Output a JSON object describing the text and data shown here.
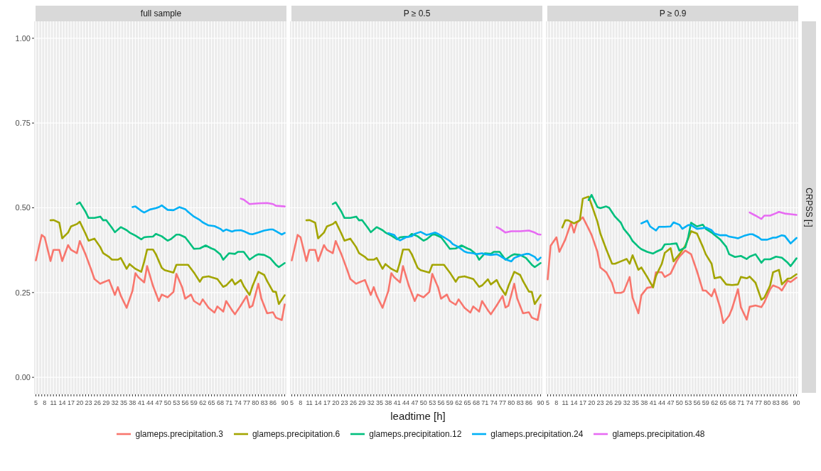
{
  "chart_data": [
    {
      "type": "line",
      "title": "full sample",
      "legend": "bottom",
      "grid": true,
      "marker": "none",
      "line_style": "solid",
      "xlim": [
        4.4,
        90.6
      ],
      "ylim": [
        -0.05,
        1.05
      ],
      "xticks": [
        5,
        {
          "value": 6,
          "label": null
        },
        {
          "value": 7,
          "label": null
        },
        8,
        {
          "value": 9,
          "label": null
        },
        {
          "value": 10,
          "label": null
        },
        11,
        {
          "value": 12,
          "label": null
        },
        {
          "value": 13,
          "label": null
        },
        14,
        {
          "value": 15,
          "label": null
        },
        {
          "value": 16,
          "label": null
        },
        17,
        {
          "value": 18,
          "label": null
        },
        {
          "value": 19,
          "label": null
        },
        20,
        {
          "value": 21,
          "label": null
        },
        {
          "value": 22,
          "label": null
        },
        23,
        {
          "value": 24,
          "label": null
        },
        {
          "value": 25,
          "label": null
        },
        26,
        {
          "value": 27,
          "label": null
        },
        {
          "value": 28,
          "label": null
        },
        29,
        {
          "value": 30,
          "label": null
        },
        {
          "value": 31,
          "label": null
        },
        32,
        {
          "value": 33,
          "label": null
        },
        {
          "value": 34,
          "label": null
        },
        35,
        {
          "value": 36,
          "label": null
        },
        {
          "value": 37,
          "label": null
        },
        38,
        {
          "value": 39,
          "label": null
        },
        {
          "value": 40,
          "label": null
        },
        41,
        {
          "value": 42,
          "label": null
        },
        {
          "value": 43,
          "label": null
        },
        44,
        {
          "value": 45,
          "label": null
        },
        {
          "value": 46,
          "label": null
        },
        47,
        {
          "value": 48,
          "label": null
        },
        {
          "value": 49,
          "label": null
        },
        50,
        {
          "value": 51,
          "label": null
        },
        {
          "value": 52,
          "label": null
        },
        53,
        {
          "value": 54,
          "label": null
        },
        {
          "value": 55,
          "label": null
        },
        56,
        {
          "value": 57,
          "label": null
        },
        {
          "value": 58,
          "label": null
        },
        59,
        {
          "value": 60,
          "label": null
        },
        {
          "value": 61,
          "label": null
        },
        62,
        {
          "value": 63,
          "label": null
        },
        {
          "value": 64,
          "label": null
        },
        65,
        {
          "value": 66,
          "label": null
        },
        {
          "value": 67,
          "label": null
        },
        68,
        {
          "value": 69,
          "label": null
        },
        {
          "value": 70,
          "label": null
        },
        71,
        {
          "value": 72,
          "label": null
        },
        {
          "value": 73,
          "label": null
        },
        74,
        {
          "value": 75,
          "label": null
        },
        {
          "value": 76,
          "label": null
        },
        77,
        {
          "value": 78,
          "label": null
        },
        {
          "value": 79,
          "label": null
        },
        80,
        {
          "value": 81,
          "label": null
        },
        {
          "value": 82,
          "label": null
        },
        83,
        {
          "value": 84,
          "label": null
        },
        {
          "value": 85,
          "label": null
        },
        86,
        {
          "value": 87,
          "label": null
        },
        {
          "value": 88,
          "label": null
        },
        {
          "value": 89,
          "label": null
        },
        90
      ],
      "yticks": [
        {
          "value": 0,
          "label": "0.00"
        },
        {
          "value": 0.25,
          "label": "0.25"
        },
        {
          "value": 0.5,
          "label": "0.50"
        },
        {
          "value": 0.75,
          "label": "0.75"
        },
        {
          "value": 1,
          "label": "1.00"
        }
      ],
      "series": [
        {
          "name": "glameps.precipitation.3",
          "color": "#f8766d",
          "x": [
            5,
            7,
            8,
            10,
            11,
            13,
            14,
            16,
            17,
            19,
            20,
            22,
            24,
            25,
            27,
            28,
            30,
            32,
            33,
            34,
            36,
            38,
            39,
            40,
            42,
            43,
            45,
            47,
            48,
            50,
            52,
            53,
            55,
            56,
            58,
            59,
            61,
            62,
            64,
            66,
            67,
            69,
            70,
            72,
            73,
            75,
            77,
            78,
            79,
            81,
            82,
            84,
            86,
            87,
            89,
            90
          ],
          "values": [
            0.345,
            0.42,
            0.413,
            0.343,
            0.376,
            0.376,
            0.343,
            0.39,
            0.376,
            0.366,
            0.402,
            0.362,
            0.315,
            0.29,
            0.276,
            0.28,
            0.287,
            0.243,
            0.266,
            0.241,
            0.205,
            0.255,
            0.307,
            0.295,
            0.28,
            0.328,
            0.27,
            0.225,
            0.244,
            0.236,
            0.252,
            0.305,
            0.265,
            0.232,
            0.244,
            0.225,
            0.214,
            0.23,
            0.205,
            0.191,
            0.209,
            0.194,
            0.225,
            0.198,
            0.186,
            0.212,
            0.24,
            0.206,
            0.211,
            0.276,
            0.233,
            0.189,
            0.192,
            0.176,
            0.169,
            0.215
          ]
        },
        {
          "name": "glameps.precipitation.6",
          "color": "#a3a500",
          "x": [
            10,
            11,
            13,
            14,
            16,
            17,
            19,
            20,
            22,
            23,
            25,
            27,
            28,
            30,
            31,
            33,
            34,
            36,
            37,
            39,
            41,
            42,
            43,
            45,
            46,
            48,
            49,
            52,
            53,
            55,
            57,
            59,
            61,
            62,
            64,
            65,
            67,
            69,
            70,
            72,
            73,
            75,
            76,
            78,
            79,
            81,
            83,
            84,
            86,
            87,
            88,
            90
          ],
          "values": [
            0.463,
            0.464,
            0.456,
            0.41,
            0.427,
            0.445,
            0.452,
            0.459,
            0.423,
            0.403,
            0.409,
            0.384,
            0.366,
            0.355,
            0.347,
            0.347,
            0.352,
            0.32,
            0.334,
            0.32,
            0.311,
            0.341,
            0.377,
            0.377,
            0.363,
            0.323,
            0.316,
            0.309,
            0.332,
            0.332,
            0.332,
            0.309,
            0.282,
            0.295,
            0.298,
            0.295,
            0.29,
            0.267,
            0.271,
            0.289,
            0.274,
            0.287,
            0.269,
            0.243,
            0.269,
            0.311,
            0.302,
            0.284,
            0.253,
            0.252,
            0.216,
            0.242
          ]
        },
        {
          "name": "glameps.precipitation.12",
          "color": "#00bf7d",
          "x": [
            19,
            20,
            22,
            23,
            25,
            27,
            28,
            29,
            31,
            32,
            34,
            36,
            37,
            39,
            41,
            42,
            43,
            45,
            46,
            48,
            50,
            51,
            53,
            54,
            56,
            57,
            59,
            61,
            63,
            65,
            66,
            68,
            69,
            71,
            73,
            74,
            76,
            78,
            80,
            81,
            83,
            85,
            87,
            88,
            90
          ],
          "values": [
            0.511,
            0.516,
            0.488,
            0.47,
            0.47,
            0.474,
            0.463,
            0.464,
            0.441,
            0.428,
            0.443,
            0.434,
            0.427,
            0.418,
            0.407,
            0.413,
            0.414,
            0.415,
            0.423,
            0.416,
            0.403,
            0.407,
            0.421,
            0.421,
            0.413,
            0.402,
            0.379,
            0.38,
            0.389,
            0.38,
            0.377,
            0.363,
            0.347,
            0.366,
            0.364,
            0.37,
            0.37,
            0.347,
            0.359,
            0.363,
            0.361,
            0.352,
            0.332,
            0.325,
            0.337
          ]
        },
        {
          "name": "glameps.precipitation.24",
          "color": "#00b0f6",
          "x": [
            38,
            39,
            41,
            42,
            44,
            46,
            47,
            48,
            50,
            52,
            54,
            56,
            57,
            59,
            61,
            62,
            64,
            66,
            68,
            69,
            70,
            72,
            73,
            75,
            76,
            78,
            79,
            81,
            83,
            85,
            86,
            87,
            89,
            90
          ],
          "values": [
            0.502,
            0.504,
            0.491,
            0.486,
            0.495,
            0.499,
            0.502,
            0.507,
            0.494,
            0.493,
            0.502,
            0.496,
            0.488,
            0.474,
            0.464,
            0.457,
            0.448,
            0.446,
            0.438,
            0.431,
            0.436,
            0.43,
            0.433,
            0.434,
            0.431,
            0.423,
            0.422,
            0.427,
            0.433,
            0.436,
            0.436,
            0.431,
            0.421,
            0.426
          ]
        },
        {
          "name": "glameps.precipitation.48",
          "color": "#e76bf3",
          "x": [
            75,
            76,
            78,
            81,
            84,
            86,
            87,
            90
          ],
          "values": [
            0.527,
            0.524,
            0.511,
            0.513,
            0.514,
            0.511,
            0.506,
            0.504
          ]
        }
      ]
    },
    {
      "type": "line",
      "title": "P ≥ 0.5",
      "xlabel": "leadtime [h]",
      "grid": true,
      "marker": "none",
      "line_style": "solid",
      "tick_labels": "x",
      "xlim": [
        4.4,
        90.6
      ],
      "ylim": [
        -0.05,
        1.05
      ],
      "xticks": [
        5,
        {
          "value": 6,
          "label": null
        },
        {
          "value": 7,
          "label": null
        },
        8,
        {
          "value": 9,
          "label": null
        },
        {
          "value": 10,
          "label": null
        },
        11,
        {
          "value": 12,
          "label": null
        },
        {
          "value": 13,
          "label": null
        },
        14,
        {
          "value": 15,
          "label": null
        },
        {
          "value": 16,
          "label": null
        },
        17,
        {
          "value": 18,
          "label": null
        },
        {
          "value": 19,
          "label": null
        },
        20,
        {
          "value": 21,
          "label": null
        },
        {
          "value": 22,
          "label": null
        },
        23,
        {
          "value": 24,
          "label": null
        },
        {
          "value": 25,
          "label": null
        },
        26,
        {
          "value": 27,
          "label": null
        },
        {
          "value": 28,
          "label": null
        },
        29,
        {
          "value": 30,
          "label": null
        },
        {
          "value": 31,
          "label": null
        },
        32,
        {
          "value": 33,
          "label": null
        },
        {
          "value": 34,
          "label": null
        },
        35,
        {
          "value": 36,
          "label": null
        },
        {
          "value": 37,
          "label": null
        },
        38,
        {
          "value": 39,
          "label": null
        },
        {
          "value": 40,
          "label": null
        },
        41,
        {
          "value": 42,
          "label": null
        },
        {
          "value": 43,
          "label": null
        },
        44,
        {
          "value": 45,
          "label": null
        },
        {
          "value": 46,
          "label": null
        },
        47,
        {
          "value": 48,
          "label": null
        },
        {
          "value": 49,
          "label": null
        },
        50,
        {
          "value": 51,
          "label": null
        },
        {
          "value": 52,
          "label": null
        },
        53,
        {
          "value": 54,
          "label": null
        },
        {
          "value": 55,
          "label": null
        },
        56,
        {
          "value": 57,
          "label": null
        },
        {
          "value": 58,
          "label": null
        },
        59,
        {
          "value": 60,
          "label": null
        },
        {
          "value": 61,
          "label": null
        },
        62,
        {
          "value": 63,
          "label": null
        },
        {
          "value": 64,
          "label": null
        },
        65,
        {
          "value": 66,
          "label": null
        },
        {
          "value": 67,
          "label": null
        },
        68,
        {
          "value": 69,
          "label": null
        },
        {
          "value": 70,
          "label": null
        },
        71,
        {
          "value": 72,
          "label": null
        },
        {
          "value": 73,
          "label": null
        },
        74,
        {
          "value": 75,
          "label": null
        },
        {
          "value": 76,
          "label": null
        },
        77,
        {
          "value": 78,
          "label": null
        },
        {
          "value": 79,
          "label": null
        },
        80,
        {
          "value": 81,
          "label": null
        },
        {
          "value": 82,
          "label": null
        },
        83,
        {
          "value": 84,
          "label": null
        },
        {
          "value": 85,
          "label": null
        },
        86,
        {
          "value": 87,
          "label": null
        },
        {
          "value": 88,
          "label": null
        },
        {
          "value": 89,
          "label": null
        },
        90
      ],
      "yticks": [
        0,
        0.25,
        0.5,
        0.75,
        1
      ],
      "series": [
        {
          "name": "glameps.precipitation.3",
          "color": "#f8766d",
          "x": [
            5,
            7,
            8,
            10,
            11,
            13,
            14,
            16,
            17,
            19,
            20,
            22,
            24,
            25,
            27,
            28,
            30,
            32,
            33,
            34,
            36,
            38,
            39,
            40,
            42,
            43,
            45,
            47,
            48,
            50,
            52,
            53,
            55,
            56,
            58,
            59,
            61,
            62,
            64,
            66,
            67,
            69,
            70,
            72,
            73,
            75,
            77,
            78,
            79,
            81,
            82,
            84,
            86,
            87,
            89,
            90
          ],
          "values": [
            0.345,
            0.42,
            0.413,
            0.343,
            0.376,
            0.376,
            0.343,
            0.39,
            0.376,
            0.366,
            0.402,
            0.362,
            0.315,
            0.29,
            0.276,
            0.28,
            0.287,
            0.243,
            0.266,
            0.241,
            0.205,
            0.255,
            0.307,
            0.295,
            0.28,
            0.328,
            0.27,
            0.225,
            0.244,
            0.236,
            0.252,
            0.305,
            0.265,
            0.232,
            0.244,
            0.225,
            0.214,
            0.23,
            0.205,
            0.191,
            0.209,
            0.194,
            0.225,
            0.198,
            0.186,
            0.212,
            0.24,
            0.206,
            0.211,
            0.276,
            0.233,
            0.189,
            0.192,
            0.176,
            0.169,
            0.215
          ]
        },
        {
          "name": "glameps.precipitation.6",
          "color": "#a3a500",
          "x": [
            10,
            11,
            13,
            14,
            16,
            17,
            19,
            20,
            22,
            23,
            25,
            27,
            28,
            30,
            31,
            33,
            34,
            36,
            37,
            39,
            41,
            42,
            43,
            45,
            46,
            48,
            49,
            52,
            53,
            55,
            57,
            59,
            61,
            62,
            64,
            65,
            67,
            69,
            70,
            72,
            73,
            75,
            76,
            78,
            79,
            81,
            83,
            84,
            86,
            87,
            88,
            90
          ],
          "values": [
            0.463,
            0.464,
            0.456,
            0.41,
            0.427,
            0.445,
            0.452,
            0.459,
            0.423,
            0.403,
            0.409,
            0.384,
            0.366,
            0.355,
            0.347,
            0.347,
            0.352,
            0.32,
            0.334,
            0.32,
            0.311,
            0.341,
            0.377,
            0.377,
            0.363,
            0.323,
            0.316,
            0.309,
            0.332,
            0.332,
            0.332,
            0.309,
            0.282,
            0.295,
            0.298,
            0.295,
            0.29,
            0.267,
            0.271,
            0.289,
            0.274,
            0.287,
            0.269,
            0.243,
            0.269,
            0.311,
            0.302,
            0.284,
            0.253,
            0.252,
            0.216,
            0.242
          ]
        },
        {
          "name": "glameps.precipitation.12",
          "color": "#00bf7d",
          "x": [
            19,
            20,
            22,
            23,
            25,
            27,
            28,
            29,
            31,
            32,
            34,
            36,
            37,
            39,
            41,
            42,
            43,
            45,
            46,
            48,
            50,
            51,
            53,
            54,
            56,
            57,
            59,
            61,
            63,
            65,
            66,
            68,
            69,
            71,
            73,
            74,
            76,
            78,
            80,
            81,
            83,
            85,
            87,
            88,
            90
          ],
          "values": [
            0.511,
            0.516,
            0.488,
            0.47,
            0.47,
            0.474,
            0.463,
            0.464,
            0.441,
            0.428,
            0.443,
            0.434,
            0.427,
            0.418,
            0.407,
            0.413,
            0.414,
            0.415,
            0.423,
            0.416,
            0.403,
            0.407,
            0.421,
            0.421,
            0.413,
            0.402,
            0.379,
            0.38,
            0.389,
            0.38,
            0.377,
            0.363,
            0.347,
            0.366,
            0.364,
            0.37,
            0.37,
            0.347,
            0.359,
            0.363,
            0.361,
            0.352,
            0.332,
            0.325,
            0.337
          ]
        },
        {
          "name": "glameps.precipitation.24",
          "color": "#00b0f6",
          "x": [
            38,
            40,
            41,
            42,
            44,
            46,
            47,
            49,
            51,
            52,
            54,
            55,
            57,
            59,
            60,
            62,
            64,
            65,
            67,
            68,
            70,
            71,
            73,
            75,
            76,
            78,
            80,
            81,
            83,
            85,
            86,
            88,
            89,
            90
          ],
          "values": [
            0.425,
            0.42,
            0.409,
            0.404,
            0.413,
            0.416,
            0.423,
            0.429,
            0.42,
            0.422,
            0.427,
            0.423,
            0.413,
            0.402,
            0.393,
            0.384,
            0.371,
            0.368,
            0.366,
            0.363,
            0.366,
            0.363,
            0.361,
            0.363,
            0.359,
            0.348,
            0.342,
            0.352,
            0.359,
            0.364,
            0.364,
            0.355,
            0.345,
            0.353
          ]
        },
        {
          "name": "glameps.precipitation.48",
          "color": "#e76bf3",
          "x": [
            75,
            76,
            78,
            80,
            83,
            86,
            88,
            89,
            90
          ],
          "values": [
            0.443,
            0.439,
            0.427,
            0.431,
            0.431,
            0.433,
            0.427,
            0.422,
            0.421
          ]
        }
      ]
    },
    {
      "type": "line",
      "title": "P ≥ 0.9",
      "ylabel": "CRPSS [-]",
      "grid": true,
      "marker": "none",
      "line_style": "solid",
      "tick_labels": "x",
      "xlim": [
        4.4,
        90.6
      ],
      "ylim": [
        -0.05,
        1.05
      ],
      "xticks": [
        5,
        {
          "value": 6,
          "label": null
        },
        {
          "value": 7,
          "label": null
        },
        8,
        {
          "value": 9,
          "label": null
        },
        {
          "value": 10,
          "label": null
        },
        11,
        {
          "value": 12,
          "label": null
        },
        {
          "value": 13,
          "label": null
        },
        14,
        {
          "value": 15,
          "label": null
        },
        {
          "value": 16,
          "label": null
        },
        17,
        {
          "value": 18,
          "label": null
        },
        {
          "value": 19,
          "label": null
        },
        20,
        {
          "value": 21,
          "label": null
        },
        {
          "value": 22,
          "label": null
        },
        23,
        {
          "value": 24,
          "label": null
        },
        {
          "value": 25,
          "label": null
        },
        26,
        {
          "value": 27,
          "label": null
        },
        {
          "value": 28,
          "label": null
        },
        29,
        {
          "value": 30,
          "label": null
        },
        {
          "value": 31,
          "label": null
        },
        32,
        {
          "value": 33,
          "label": null
        },
        {
          "value": 34,
          "label": null
        },
        35,
        {
          "value": 36,
          "label": null
        },
        {
          "value": 37,
          "label": null
        },
        38,
        {
          "value": 39,
          "label": null
        },
        {
          "value": 40,
          "label": null
        },
        41,
        {
          "value": 42,
          "label": null
        },
        {
          "value": 43,
          "label": null
        },
        44,
        {
          "value": 45,
          "label": null
        },
        {
          "value": 46,
          "label": null
        },
        47,
        {
          "value": 48,
          "label": null
        },
        {
          "value": 49,
          "label": null
        },
        50,
        {
          "value": 51,
          "label": null
        },
        {
          "value": 52,
          "label": null
        },
        53,
        {
          "value": 54,
          "label": null
        },
        {
          "value": 55,
          "label": null
        },
        56,
        {
          "value": 57,
          "label": null
        },
        {
          "value": 58,
          "label": null
        },
        59,
        {
          "value": 60,
          "label": null
        },
        {
          "value": 61,
          "label": null
        },
        62,
        {
          "value": 63,
          "label": null
        },
        {
          "value": 64,
          "label": null
        },
        65,
        {
          "value": 66,
          "label": null
        },
        {
          "value": 67,
          "label": null
        },
        68,
        {
          "value": 69,
          "label": null
        },
        {
          "value": 70,
          "label": null
        },
        71,
        {
          "value": 72,
          "label": null
        },
        {
          "value": 73,
          "label": null
        },
        74,
        {
          "value": 75,
          "label": null
        },
        {
          "value": 76,
          "label": null
        },
        77,
        {
          "value": 78,
          "label": null
        },
        {
          "value": 79,
          "label": null
        },
        80,
        {
          "value": 81,
          "label": null
        },
        {
          "value": 82,
          "label": null
        },
        83,
        {
          "value": 84,
          "label": null
        },
        {
          "value": 85,
          "label": null
        },
        86,
        {
          "value": 87,
          "label": null
        },
        {
          "value": 88,
          "label": null
        },
        {
          "value": 89,
          "label": null
        },
        90
      ],
      "yticks": [
        0,
        0.25,
        0.5,
        0.75,
        1
      ],
      "series": [
        {
          "name": "glameps.precipitation.3",
          "color": "#f8766d",
          "x": [
            5,
            6,
            8,
            9,
            11,
            13,
            14,
            15,
            17,
            19,
            20,
            22,
            23,
            25,
            27,
            28,
            30,
            31,
            33,
            34,
            36,
            37,
            39,
            41,
            42,
            44,
            45,
            47,
            49,
            50,
            52,
            54,
            56,
            58,
            59,
            61,
            62,
            64,
            65,
            67,
            68,
            70,
            71,
            73,
            74,
            76,
            78,
            79,
            81,
            82,
            84,
            85,
            87,
            88,
            90
          ],
          "values": [
            0.289,
            0.388,
            0.413,
            0.37,
            0.406,
            0.456,
            0.427,
            0.456,
            0.472,
            0.438,
            0.42,
            0.37,
            0.324,
            0.31,
            0.278,
            0.249,
            0.249,
            0.253,
            0.296,
            0.235,
            0.189,
            0.242,
            0.264,
            0.267,
            0.31,
            0.31,
            0.296,
            0.306,
            0.342,
            0.356,
            0.374,
            0.363,
            0.313,
            0.256,
            0.256,
            0.239,
            0.26,
            0.203,
            0.16,
            0.182,
            0.203,
            0.26,
            0.207,
            0.17,
            0.208,
            0.212,
            0.207,
            0.221,
            0.26,
            0.271,
            0.264,
            0.256,
            0.285,
            0.281,
            0.294
          ]
        },
        {
          "name": "glameps.precipitation.6",
          "color": "#a3a500",
          "x": [
            10,
            11,
            12,
            14,
            16,
            17,
            19,
            20,
            22,
            23,
            25,
            27,
            28,
            30,
            32,
            33,
            34,
            36,
            37,
            39,
            41,
            42,
            44,
            45,
            47,
            48,
            50,
            52,
            54,
            56,
            58,
            59,
            61,
            62,
            64,
            66,
            68,
            70,
            71,
            73,
            74,
            76,
            78,
            79,
            81,
            82,
            84,
            85,
            87,
            88,
            90
          ],
          "values": [
            0.442,
            0.463,
            0.463,
            0.454,
            0.463,
            0.527,
            0.533,
            0.509,
            0.459,
            0.424,
            0.378,
            0.335,
            0.335,
            0.342,
            0.349,
            0.335,
            0.36,
            0.317,
            0.324,
            0.296,
            0.265,
            0.299,
            0.335,
            0.367,
            0.381,
            0.342,
            0.363,
            0.388,
            0.431,
            0.424,
            0.385,
            0.363,
            0.335,
            0.292,
            0.296,
            0.274,
            0.272,
            0.274,
            0.296,
            0.292,
            0.297,
            0.279,
            0.229,
            0.235,
            0.271,
            0.31,
            0.317,
            0.274,
            0.291,
            0.292,
            0.304
          ]
        },
        {
          "name": "glameps.precipitation.12",
          "color": "#00bf7d",
          "x": [
            19,
            20,
            22,
            23,
            25,
            26,
            28,
            30,
            31,
            33,
            34,
            36,
            37,
            39,
            41,
            42,
            44,
            45,
            47,
            49,
            50,
            52,
            53,
            54,
            56,
            58,
            59,
            61,
            62,
            64,
            66,
            67,
            69,
            71,
            73,
            74,
            76,
            78,
            79,
            81,
            83,
            85,
            87,
            88,
            90
          ],
          "values": [
            0.523,
            0.538,
            0.502,
            0.499,
            0.504,
            0.5,
            0.474,
            0.456,
            0.438,
            0.417,
            0.402,
            0.385,
            0.378,
            0.37,
            0.365,
            0.37,
            0.378,
            0.392,
            0.393,
            0.395,
            0.374,
            0.383,
            0.413,
            0.456,
            0.445,
            0.45,
            0.438,
            0.427,
            0.42,
            0.406,
            0.385,
            0.363,
            0.355,
            0.358,
            0.349,
            0.356,
            0.363,
            0.338,
            0.348,
            0.348,
            0.356,
            0.353,
            0.338,
            0.328,
            0.351
          ]
        },
        {
          "name": "glameps.precipitation.24",
          "color": "#00b0f6",
          "x": [
            37,
            39,
            40,
            42,
            43,
            45,
            47,
            48,
            50,
            51,
            53,
            54,
            56,
            58,
            59,
            61,
            62,
            64,
            66,
            67,
            69,
            70,
            72,
            74,
            75,
            77,
            78,
            80,
            82,
            83,
            85,
            86,
            88,
            90
          ],
          "values": [
            0.454,
            0.462,
            0.445,
            0.433,
            0.444,
            0.444,
            0.445,
            0.457,
            0.45,
            0.438,
            0.449,
            0.449,
            0.438,
            0.44,
            0.442,
            0.434,
            0.424,
            0.419,
            0.419,
            0.415,
            0.412,
            0.41,
            0.417,
            0.422,
            0.422,
            0.413,
            0.406,
            0.406,
            0.412,
            0.412,
            0.419,
            0.417,
            0.395,
            0.411
          ]
        },
        {
          "name": "glameps.precipitation.48",
          "color": "#e76bf3",
          "x": [
            74,
            76,
            78,
            79,
            81,
            83,
            84,
            86,
            88,
            90
          ],
          "values": [
            0.486,
            0.477,
            0.467,
            0.477,
            0.477,
            0.484,
            0.488,
            0.483,
            0.481,
            0.479
          ]
        }
      ]
    }
  ]
}
